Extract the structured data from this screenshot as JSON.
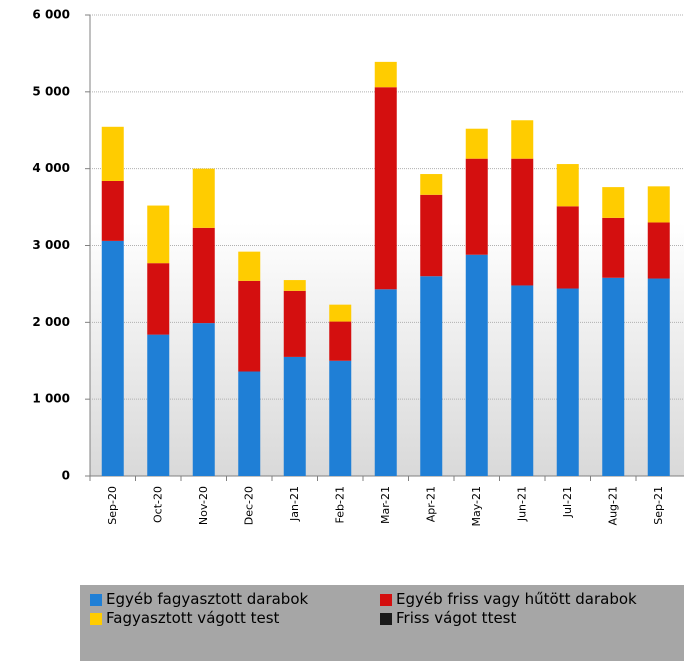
{
  "chart_data": {
    "type": "stacked-bar",
    "categories": [
      "Sep-20",
      "Oct-20",
      "Nov-20",
      "Dec-20",
      "Jan-21",
      "Feb-21",
      "Mar-21",
      "Apr-21",
      "May-21",
      "Jun-21",
      "Jul-21",
      "Aug-21",
      "Sep-21"
    ],
    "series": [
      {
        "name": "Egyéb fagyasztott darabok",
        "color": "#1f7fd6",
        "values": [
          3060,
          1840,
          1990,
          1360,
          1550,
          1500,
          2430,
          2600,
          2880,
          2480,
          2440,
          2580,
          2570
        ]
      },
      {
        "name": "Egyéb friss vagy hűtött darabok",
        "color": "#d40f0f",
        "values": [
          780,
          930,
          1240,
          1180,
          860,
          510,
          2630,
          1060,
          1250,
          1650,
          1070,
          780,
          730
        ]
      },
      {
        "name": "Fagyasztott vágott test",
        "color": "#ffcc00",
        "values": [
          705,
          750,
          770,
          380,
          140,
          220,
          330,
          270,
          390,
          500,
          550,
          400,
          470
        ]
      },
      {
        "name": "Friss vágot ttest",
        "color": "#1a1a1a",
        "values": [
          0,
          0,
          0,
          0,
          0,
          0,
          0,
          0,
          0,
          0,
          0,
          0,
          0
        ]
      }
    ],
    "ylim": [
      0,
      6000
    ],
    "yticks": [
      0,
      {
        "value": 1000,
        "label": "1 000"
      },
      {
        "value": 2000,
        "label": "2 000"
      },
      {
        "value": 3000,
        "label": "3 000"
      },
      {
        "value": 4000,
        "label": "4 000"
      },
      {
        "value": 5000,
        "label": "5 000"
      },
      {
        "value": 6000,
        "label": "6 000"
      }
    ],
    "grid": true,
    "legend": "bottom"
  }
}
